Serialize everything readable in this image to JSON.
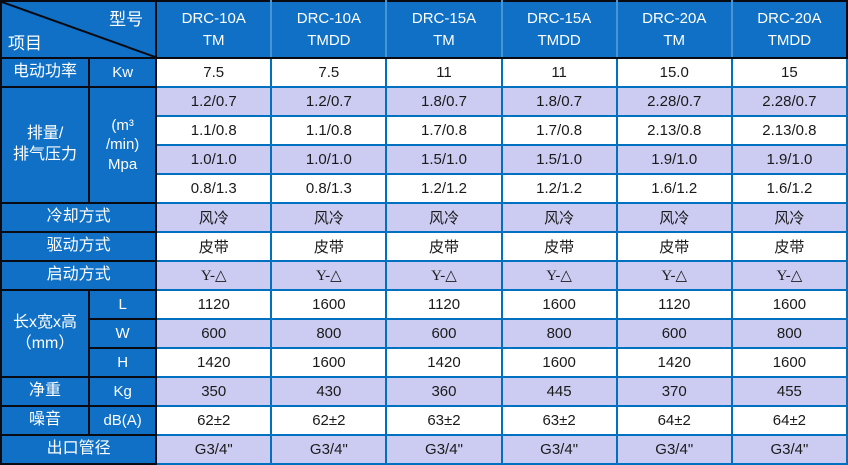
{
  "corner": {
    "top_right": "型号",
    "bottom_left": "项目"
  },
  "model_columns": [
    "DRC-10A\nTM",
    "DRC-10A\nTMDD",
    "DRC-15A\nTM",
    "DRC-15A\nTMDD",
    "DRC-20A\nTM",
    "DRC-20A\nTMDD"
  ],
  "rows": [
    {
      "label": "电动功率",
      "unit": "Kw",
      "values": [
        "7.5",
        "7.5",
        "11",
        "11",
        "15.0",
        "15"
      ]
    },
    {
      "label": "排量/\n排气压力",
      "label_rowspan": 4,
      "unit": "(m³\n/min)\nMpa",
      "unit_rowspan": 4,
      "values": [
        "1.2/0.7",
        "1.2/0.7",
        "1.8/0.7",
        "1.8/0.7",
        "2.28/0.7",
        "2.28/0.7"
      ]
    },
    {
      "values": [
        "1.1/0.8",
        "1.1/0.8",
        "1.7/0.8",
        "1.7/0.8",
        "2.13/0.8",
        "2.13/0.8"
      ]
    },
    {
      "values": [
        "1.0/1.0",
        "1.0/1.0",
        "1.5/1.0",
        "1.5/1.0",
        "1.9/1.0",
        "1.9/1.0"
      ]
    },
    {
      "values": [
        "0.8/1.3",
        "0.8/1.3",
        "1.2/1.2",
        "1.2/1.2",
        "1.6/1.2",
        "1.6/1.2"
      ]
    },
    {
      "label": "冷却方式",
      "label_colspan": 2,
      "serif": true,
      "values": [
        "风冷",
        "风冷",
        "风冷",
        "风冷",
        "风冷",
        "风冷"
      ]
    },
    {
      "label": "驱动方式",
      "label_colspan": 2,
      "serif": true,
      "values": [
        "皮带",
        "皮带",
        "皮带",
        "皮带",
        "皮带",
        "皮带"
      ]
    },
    {
      "label": "启动方式",
      "label_colspan": 2,
      "serif": true,
      "values": [
        "Y-△",
        "Y-△",
        "Y-△",
        "Y-△",
        "Y-△",
        "Y-△"
      ]
    },
    {
      "label": "长x宽x高\n（mm）",
      "label_rowspan": 3,
      "unit": "L",
      "values": [
        "1120",
        "1600",
        "1120",
        "1600",
        "1120",
        "1600"
      ]
    },
    {
      "unit": "W",
      "values": [
        "600",
        "800",
        "600",
        "800",
        "600",
        "800"
      ]
    },
    {
      "unit": "H",
      "values": [
        "1420",
        "1600",
        "1420",
        "1600",
        "1420",
        "1600"
      ]
    },
    {
      "label": "净重",
      "unit": "Kg",
      "values": [
        "350",
        "430",
        "360",
        "445",
        "370",
        "455"
      ]
    },
    {
      "label": "噪音",
      "unit": "dB(A)",
      "values": [
        "62±2",
        "62±2",
        "63±2",
        "63±2",
        "64±2",
        "64±2"
      ]
    },
    {
      "label": "出口管径",
      "label_colspan": 2,
      "values": [
        "G3/4\"",
        "G3/4\"",
        "G3/4\"",
        "G3/4\"",
        "G3/4\"",
        "G3/4\""
      ]
    }
  ],
  "colors": {
    "header_bg": "#0F70C6",
    "alt_row_bg": "#CCCCF2",
    "grid_blue": "#0070C0",
    "grid_dark": "#0A0A12",
    "text_dark": "#1A1A1A",
    "text_light": "#FFFFFF"
  }
}
